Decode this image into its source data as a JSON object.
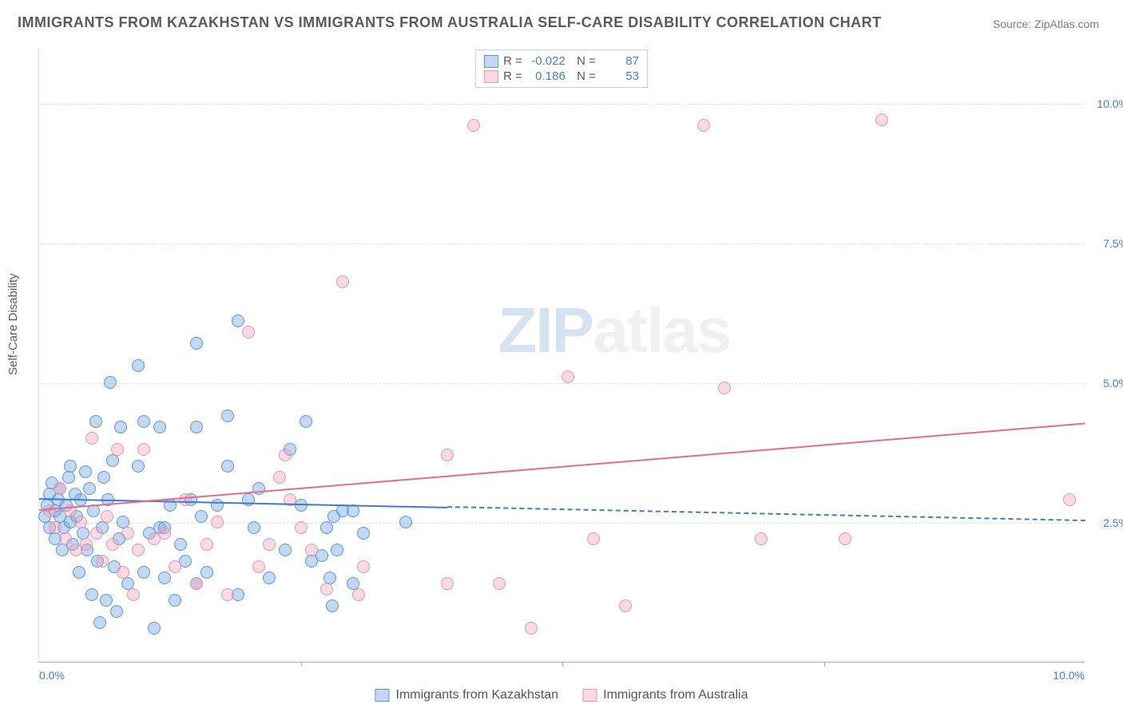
{
  "title": "IMMIGRANTS FROM KAZAKHSTAN VS IMMIGRANTS FROM AUSTRALIA SELF-CARE DISABILITY CORRELATION CHART",
  "source": "Source: ZipAtlas.com",
  "y_axis_label": "Self-Care Disability",
  "watermark": {
    "zip": "ZIP",
    "atlas": "atlas"
  },
  "chart": {
    "type": "scatter",
    "x_domain": [
      0,
      10
    ],
    "y_domain": [
      0,
      11
    ],
    "grid_y": [
      2.5,
      5.0,
      7.5,
      10.0
    ],
    "grid_color": "#e0e0e0",
    "y_tick_labels": [
      "2.5%",
      "5.0%",
      "7.5%",
      "10.0%"
    ],
    "x_tick_labels": {
      "0": "0.0%",
      "10": "10.0%"
    },
    "x_ticks_minor": [
      2.5,
      5.0,
      7.5
    ],
    "background_color": "#ffffff",
    "series": [
      {
        "name": "Immigrants from Kazakhstan",
        "color_fill": "rgba(120,170,225,0.45)",
        "color_stroke": "#5a95d6",
        "R": "-0.022",
        "N": "87",
        "trend": {
          "x1": 0,
          "y1": 2.95,
          "x2": 10,
          "y2": 2.55,
          "solid_until_x": 3.9,
          "color": "#3f7cc6"
        },
        "points": [
          [
            0.05,
            2.6
          ],
          [
            0.08,
            2.8
          ],
          [
            0.1,
            3.0
          ],
          [
            0.1,
            2.4
          ],
          [
            0.12,
            3.2
          ],
          [
            0.15,
            2.7
          ],
          [
            0.15,
            2.2
          ],
          [
            0.18,
            2.9
          ],
          [
            0.2,
            3.1
          ],
          [
            0.2,
            2.6
          ],
          [
            0.22,
            2.0
          ],
          [
            0.24,
            2.4
          ],
          [
            0.26,
            2.8
          ],
          [
            0.28,
            3.3
          ],
          [
            0.3,
            2.5
          ],
          [
            0.3,
            3.5
          ],
          [
            0.32,
            2.1
          ],
          [
            0.34,
            3.0
          ],
          [
            0.36,
            2.6
          ],
          [
            0.38,
            1.6
          ],
          [
            0.4,
            2.9
          ],
          [
            0.42,
            2.3
          ],
          [
            0.44,
            3.4
          ],
          [
            0.46,
            2.0
          ],
          [
            0.48,
            3.1
          ],
          [
            0.5,
            1.2
          ],
          [
            0.52,
            2.7
          ],
          [
            0.54,
            4.3
          ],
          [
            0.56,
            1.8
          ],
          [
            0.58,
            0.7
          ],
          [
            0.6,
            2.4
          ],
          [
            0.62,
            3.3
          ],
          [
            0.64,
            1.1
          ],
          [
            0.66,
            2.9
          ],
          [
            0.68,
            5.0
          ],
          [
            0.7,
            3.6
          ],
          [
            0.72,
            1.7
          ],
          [
            0.74,
            0.9
          ],
          [
            0.76,
            2.2
          ],
          [
            0.78,
            4.2
          ],
          [
            0.8,
            2.5
          ],
          [
            0.85,
            1.4
          ],
          [
            0.95,
            5.3
          ],
          [
            0.95,
            3.5
          ],
          [
            1.0,
            4.3
          ],
          [
            1.0,
            1.6
          ],
          [
            1.05,
            2.3
          ],
          [
            1.1,
            0.6
          ],
          [
            1.15,
            4.2
          ],
          [
            1.15,
            2.4
          ],
          [
            1.2,
            2.4
          ],
          [
            1.2,
            1.5
          ],
          [
            1.25,
            2.8
          ],
          [
            1.3,
            1.1
          ],
          [
            1.35,
            2.1
          ],
          [
            1.4,
            1.8
          ],
          [
            1.45,
            2.9
          ],
          [
            1.5,
            4.2
          ],
          [
            1.5,
            1.4
          ],
          [
            1.5,
            5.7
          ],
          [
            1.55,
            2.6
          ],
          [
            1.6,
            1.6
          ],
          [
            1.7,
            2.8
          ],
          [
            1.8,
            3.5
          ],
          [
            1.8,
            4.4
          ],
          [
            1.9,
            6.1
          ],
          [
            1.9,
            1.2
          ],
          [
            2.0,
            2.9
          ],
          [
            2.05,
            2.4
          ],
          [
            2.1,
            3.1
          ],
          [
            2.2,
            1.5
          ],
          [
            2.35,
            2.0
          ],
          [
            2.4,
            3.8
          ],
          [
            2.5,
            2.8
          ],
          [
            2.55,
            4.3
          ],
          [
            2.6,
            1.8
          ],
          [
            2.7,
            1.9
          ],
          [
            2.75,
            2.4
          ],
          [
            2.78,
            1.5
          ],
          [
            2.8,
            1.0
          ],
          [
            2.82,
            2.6
          ],
          [
            2.85,
            2.0
          ],
          [
            2.9,
            2.7
          ],
          [
            3.0,
            2.7
          ],
          [
            3.0,
            1.4
          ],
          [
            3.1,
            2.3
          ],
          [
            3.5,
            2.5
          ]
        ]
      },
      {
        "name": "Immigrants from Australia",
        "color_fill": "rgba(240,160,185,0.4)",
        "color_stroke": "#e395b1",
        "R": "0.186",
        "N": "53",
        "trend": {
          "x1": 0,
          "y1": 2.75,
          "x2": 10,
          "y2": 4.3,
          "solid_until_x": 10,
          "color": "#e36a94"
        },
        "points": [
          [
            0.1,
            2.7
          ],
          [
            0.15,
            2.4
          ],
          [
            0.2,
            3.1
          ],
          [
            0.25,
            2.2
          ],
          [
            0.3,
            2.7
          ],
          [
            0.35,
            2.0
          ],
          [
            0.4,
            2.5
          ],
          [
            0.45,
            2.1
          ],
          [
            0.5,
            4.0
          ],
          [
            0.55,
            2.3
          ],
          [
            0.6,
            1.8
          ],
          [
            0.65,
            2.6
          ],
          [
            0.7,
            2.1
          ],
          [
            0.75,
            3.8
          ],
          [
            0.8,
            1.6
          ],
          [
            0.85,
            2.3
          ],
          [
            0.9,
            1.2
          ],
          [
            0.95,
            2.0
          ],
          [
            1.0,
            3.8
          ],
          [
            1.1,
            2.2
          ],
          [
            1.2,
            2.3
          ],
          [
            1.3,
            1.7
          ],
          [
            1.4,
            2.9
          ],
          [
            1.5,
            1.4
          ],
          [
            1.6,
            2.1
          ],
          [
            1.7,
            2.5
          ],
          [
            1.8,
            1.2
          ],
          [
            2.0,
            5.9
          ],
          [
            2.1,
            1.7
          ],
          [
            2.2,
            2.1
          ],
          [
            2.3,
            3.3
          ],
          [
            2.35,
            3.7
          ],
          [
            2.4,
            2.9
          ],
          [
            2.5,
            2.4
          ],
          [
            2.6,
            2.0
          ],
          [
            2.75,
            1.3
          ],
          [
            2.9,
            6.8
          ],
          [
            3.05,
            1.2
          ],
          [
            3.1,
            1.7
          ],
          [
            3.9,
            3.7
          ],
          [
            3.9,
            1.4
          ],
          [
            4.15,
            9.6
          ],
          [
            4.4,
            1.4
          ],
          [
            4.7,
            0.6
          ],
          [
            5.05,
            5.1
          ],
          [
            5.3,
            2.2
          ],
          [
            5.6,
            1.0
          ],
          [
            6.35,
            9.6
          ],
          [
            6.55,
            4.9
          ],
          [
            6.9,
            2.2
          ],
          [
            7.7,
            2.2
          ],
          [
            8.05,
            9.7
          ],
          [
            9.85,
            2.9
          ]
        ]
      }
    ]
  },
  "legend_bottom": {
    "series1": "Immigrants from Kazakhstan",
    "series2": "Immigrants from Australia"
  }
}
